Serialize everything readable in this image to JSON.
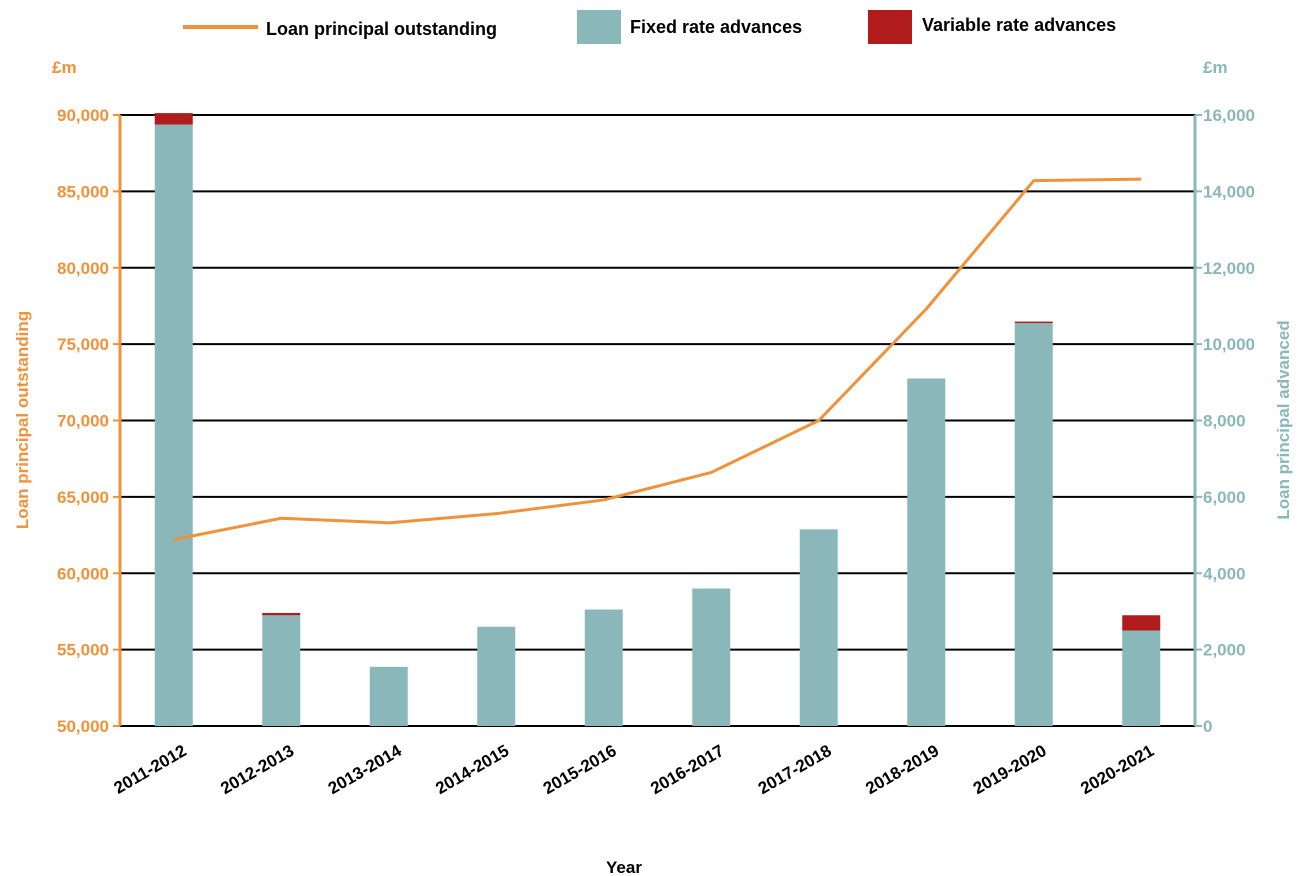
{
  "chart_data": {
    "type": "bar",
    "categories": [
      "2011-2012",
      "2012-2013",
      "2013-2014",
      "2014-2015",
      "2015-2016",
      "2016-2017",
      "2017-2018",
      "2018-2019",
      "2019-2020",
      "2020-2021"
    ],
    "series": [
      {
        "name": "Fixed rate advances",
        "kind": "bar",
        "axis": "right",
        "stack": "advances",
        "color": "#8ab8ba",
        "values": [
          15750,
          2900,
          1550,
          2600,
          3050,
          3600,
          5150,
          9100,
          10550,
          2500
        ]
      },
      {
        "name": "Variable rate advances",
        "kind": "bar",
        "axis": "right",
        "stack": "advances",
        "color": "#b01c1c",
        "values": [
          300,
          60,
          0,
          0,
          0,
          0,
          0,
          0,
          40,
          400
        ]
      },
      {
        "name": "Loan principal outstanding",
        "kind": "line",
        "axis": "left",
        "color": "#f0923a",
        "values": [
          62200,
          63600,
          63300,
          63900,
          64800,
          66600,
          70000,
          77300,
          85700,
          85800
        ]
      }
    ],
    "left_axis": {
      "unit": "£m",
      "label": "Loan principal outstanding",
      "ylim": [
        50000,
        90000
      ],
      "ticks": [
        "50,000",
        "55,000",
        "60,000",
        "65,000",
        "70,000",
        "75,000",
        "80,000",
        "85,000",
        "90,000"
      ]
    },
    "right_axis": {
      "unit": "£m",
      "label": "Loan principal advanced",
      "ylim": [
        0,
        16000
      ],
      "ticks": [
        "0",
        "2,000",
        "4,000",
        "6,000",
        "8,000",
        "10,000",
        "12,000",
        "14,000",
        "16,000"
      ]
    },
    "xlabel": "Year",
    "grid": true,
    "legend_position": "top"
  }
}
